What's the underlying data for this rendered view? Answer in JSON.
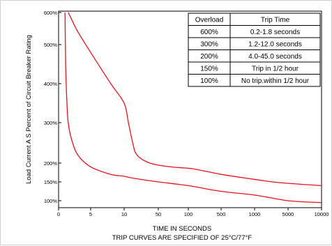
{
  "chart_data": {
    "type": "line",
    "title": "",
    "xlabel": "TIME IN SECONDS",
    "caption": "TRIP CURVES ARE SPECIFIED OF 25°C/77°F",
    "ylabel": "Load Current A S Percent of Circuit Breaker Rating",
    "grid": false,
    "legend": "none",
    "line_color": "#e8111b",
    "x_ticks": [
      "0",
      "5",
      "10",
      "50",
      "100",
      "500",
      "1000",
      "5000",
      "10000"
    ],
    "y_ticks": [
      {
        "label": "600%",
        "value": 600
      },
      {
        "label": "500%",
        "value": 500
      },
      {
        "label": "400%",
        "value": 400
      },
      {
        "label": "300%",
        "value": 300
      },
      {
        "label": "200%",
        "value": 200
      },
      {
        "label": "150%",
        "value": 150
      },
      {
        "label": "100%",
        "value": 100
      }
    ],
    "series": [
      {
        "points": [
          [
            1.5,
            600
          ],
          [
            2,
            580
          ],
          [
            3,
            540
          ],
          [
            5,
            480
          ],
          [
            8,
            400
          ],
          [
            10,
            350
          ],
          [
            15,
            300
          ],
          [
            20,
            250
          ],
          [
            25,
            220
          ],
          [
            40,
            200
          ],
          [
            70,
            190
          ],
          [
            150,
            185
          ],
          [
            500,
            170
          ],
          [
            1500,
            155
          ],
          [
            4000,
            148
          ],
          [
            10000,
            140
          ]
        ]
      },
      {
        "points": [
          [
            1,
            600
          ],
          [
            1.1,
            450
          ],
          [
            1.3,
            350
          ],
          [
            1.5,
            300
          ],
          [
            2,
            260
          ],
          [
            3,
            220
          ],
          [
            5,
            190
          ],
          [
            8,
            170
          ],
          [
            10,
            165
          ],
          [
            20,
            160
          ],
          [
            50,
            150
          ],
          [
            100,
            140
          ],
          [
            500,
            125
          ],
          [
            1000,
            115
          ],
          [
            5000,
            100
          ],
          [
            10000,
            95
          ]
        ]
      }
    ],
    "table": {
      "headers": [
        "Overload",
        "Trip Time"
      ],
      "rows": [
        [
          "600%",
          "0.2-1.8 seconds"
        ],
        [
          "300%",
          "1.2-12.0 seconds"
        ],
        [
          "200%",
          "4.0-45.0 seconds"
        ],
        [
          "150%",
          "Trip in 1/2 hour"
        ],
        [
          "100%",
          "No trip.within 1/2 hour"
        ]
      ]
    }
  }
}
